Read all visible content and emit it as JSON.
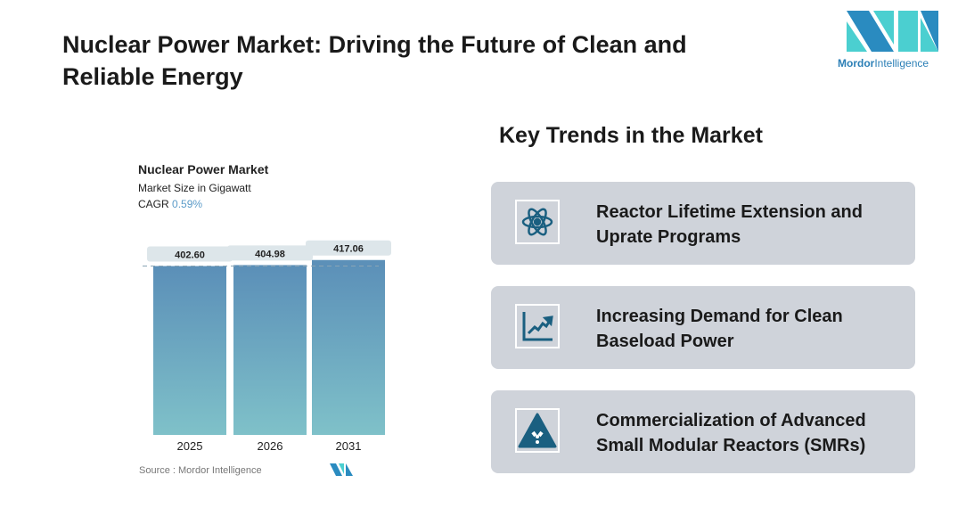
{
  "header": {
    "title": "Nuclear Power Market: Driving the Future of Clean and Reliable Energy",
    "logo_text_bold": "Mordor",
    "logo_text": "Intelligence"
  },
  "chart_header": {
    "title": "Nuclear Power Market",
    "subtitle": "Market Size in Gigawatt",
    "cagr_label": "CAGR",
    "cagr_value": "0.59%"
  },
  "chart_data": {
    "type": "bar",
    "title": "Nuclear Power Market",
    "ylabel": "Market Size in Gigawatt",
    "categories": [
      "2025",
      "2026",
      "2031"
    ],
    "values": [
      402.6,
      404.98,
      417.06
    ],
    "value_labels": [
      "402.60",
      "404.98",
      "417.06"
    ],
    "ylim": [
      0,
      425
    ],
    "grid": false,
    "colors": {
      "top": "#5b8fb8",
      "bottom": "#7fc1c9"
    }
  },
  "source": "Source :  Mordor Intelligence",
  "trends": {
    "title": "Key Trends in the Market",
    "items": [
      {
        "icon": "atom-icon",
        "label": "Reactor Lifetime Extension and Uprate Programs"
      },
      {
        "icon": "trend-chart-icon",
        "label": "Increasing Demand for Clean Baseload Power"
      },
      {
        "icon": "radiation-warning-icon",
        "label": "Commercialization of Advanced Small Modular Reactors (SMRs)"
      }
    ]
  },
  "colors": {
    "icon": "#1a5f80",
    "card": "#cfd3da"
  }
}
